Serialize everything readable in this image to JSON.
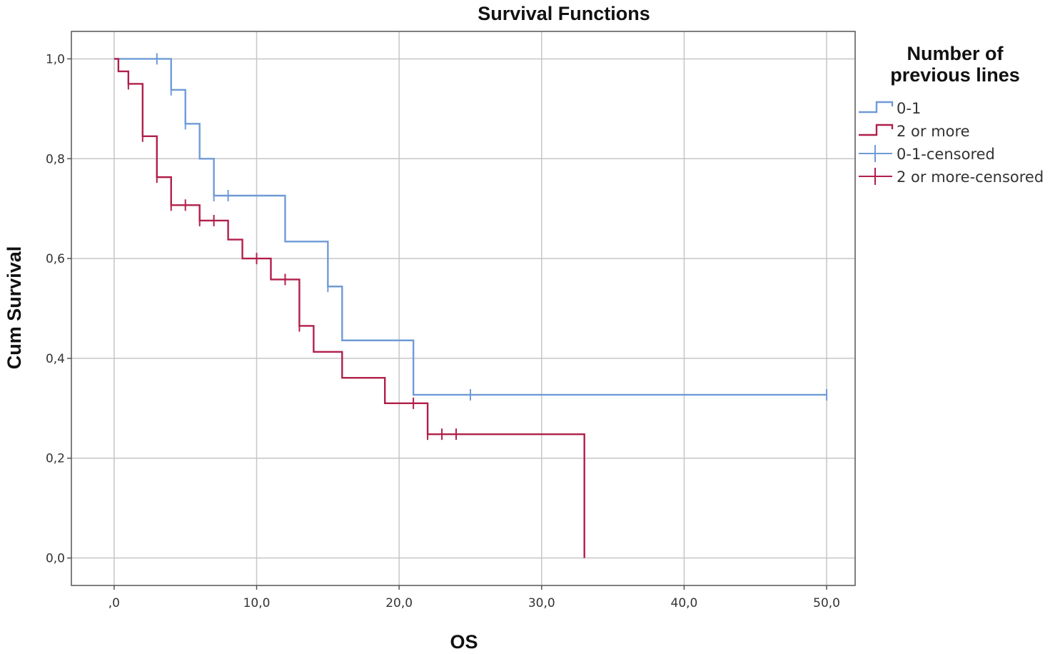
{
  "chart_data": {
    "type": "line",
    "title": "Survival Functions",
    "xlabel": "OS",
    "ylabel": "Cum Survival",
    "xlim": [
      -3,
      52
    ],
    "ylim": [
      -0.055,
      1.055
    ],
    "x_ticks": [
      0,
      10,
      20,
      30,
      40,
      50
    ],
    "x_tick_labels": [
      ",0",
      "10,0",
      "20,0",
      "30,0",
      "40,0",
      "50,0"
    ],
    "y_ticks": [
      0,
      0.2,
      0.4,
      0.6,
      0.8,
      1.0
    ],
    "y_tick_labels": [
      "0,0",
      "0,2",
      "0,4",
      "0,6",
      "0,8",
      "1,0"
    ],
    "grid": true,
    "legend": {
      "title_lines": [
        "Number of",
        "previous lines"
      ],
      "placement": "right",
      "entries": [
        {
          "label": "0-1",
          "kind": "step",
          "color": "#6f9bd6"
        },
        {
          "label": "2 or more",
          "kind": "step",
          "color": "#b11f4a"
        },
        {
          "label": "0-1-censored",
          "kind": "censor",
          "color": "#6f9bd6"
        },
        {
          "label": "2 or more-censored",
          "kind": "censor",
          "color": "#b11f4a"
        }
      ]
    },
    "series": [
      {
        "name": "0-1",
        "color": "#6f9bd6",
        "steps": [
          [
            0,
            1.0
          ],
          [
            4,
            0.938
          ],
          [
            5,
            0.87
          ],
          [
            6,
            0.8
          ],
          [
            7,
            0.726
          ],
          [
            12,
            0.634
          ],
          [
            15,
            0.544
          ],
          [
            16,
            0.436
          ],
          [
            21,
            0.327
          ],
          [
            50,
            0.327
          ]
        ],
        "censored": [
          [
            3,
            1.0
          ],
          [
            4,
            0.938
          ],
          [
            5,
            0.87
          ],
          [
            7,
            0.726
          ],
          [
            8,
            0.726
          ],
          [
            15,
            0.544
          ],
          [
            25,
            0.327
          ],
          [
            50,
            0.327
          ]
        ]
      },
      {
        "name": "2 or more",
        "color": "#b11f4a",
        "steps": [
          [
            0,
            1.0
          ],
          [
            0.3,
            0.975
          ],
          [
            1,
            0.95
          ],
          [
            2,
            0.845
          ],
          [
            3,
            0.763
          ],
          [
            4,
            0.707
          ],
          [
            6,
            0.676
          ],
          [
            8,
            0.638
          ],
          [
            9,
            0.6
          ],
          [
            11,
            0.558
          ],
          [
            13,
            0.465
          ],
          [
            14,
            0.413
          ],
          [
            16,
            0.361
          ],
          [
            19,
            0.31
          ],
          [
            22,
            0.248
          ],
          [
            33,
            0.248
          ],
          [
            33,
            0.0
          ]
        ],
        "censored": [
          [
            1,
            0.95
          ],
          [
            2,
            0.845
          ],
          [
            3,
            0.763
          ],
          [
            4,
            0.707
          ],
          [
            5,
            0.707
          ],
          [
            6,
            0.676
          ],
          [
            7,
            0.676
          ],
          [
            10,
            0.6
          ],
          [
            12,
            0.558
          ],
          [
            13,
            0.465
          ],
          [
            21,
            0.31
          ],
          [
            22,
            0.248
          ],
          [
            23,
            0.248
          ],
          [
            24,
            0.248
          ]
        ]
      }
    ]
  }
}
